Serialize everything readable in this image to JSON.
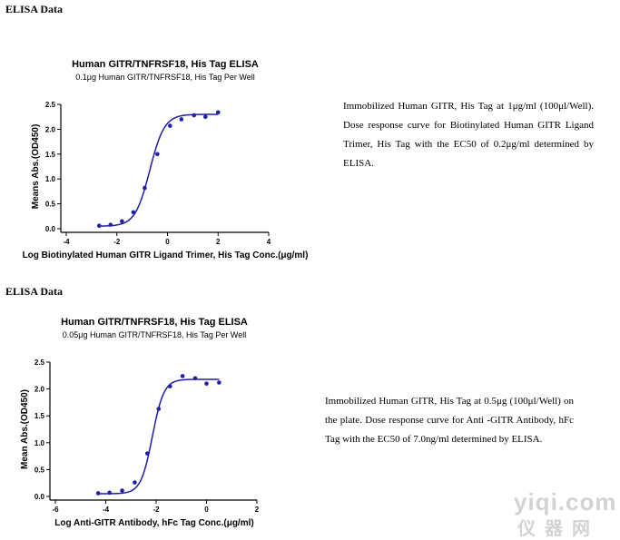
{
  "sections": [
    {
      "heading": "ELISA Data",
      "description": "Immobilized Human GITR, His Tag at 1μg/ml (100μl/Well). Dose response curve for Biotinylated Human GITR Ligand Trimer, His Tag with the EC50 of 0.2μg/ml determined by ELISA."
    },
    {
      "heading": "ELISA Data",
      "description": "Immobilized Human GITR, His Tag at 0.5μg (100μl/Well) on the plate. Dose response curve for Anti -GITR Antibody, hFc Tag with the EC50 of 7.0ng/ml determined by ELISA."
    }
  ],
  "watermark": {
    "line1": "yiqi.com",
    "line2": "仪器网"
  },
  "chart_data": [
    {
      "type": "scatter",
      "title": "Human GITR/TNFRSF18, His Tag ELISA",
      "subtitle": "0.1μg Human GITR/TNFRSF18, His Tag Per Well",
      "xlabel": "Log Biotinylated Human GITR Ligand Trimer, His Tag Conc.(μg/ml)",
      "ylabel": "Means Abs.(OD450)",
      "xlim": [
        -4,
        4
      ],
      "ylim": [
        0,
        2.5
      ],
      "xticks": [
        "-4",
        "-2",
        "0",
        "2",
        "4"
      ],
      "yticks": [
        "0.0",
        "0.5",
        "1.0",
        "1.5",
        "2.0",
        "2.5"
      ],
      "points": [
        {
          "x": -2.7,
          "y": 0.06
        },
        {
          "x": -2.25,
          "y": 0.08
        },
        {
          "x": -1.8,
          "y": 0.15
        },
        {
          "x": -1.35,
          "y": 0.33
        },
        {
          "x": -0.9,
          "y": 0.82
        },
        {
          "x": -0.4,
          "y": 1.5
        },
        {
          "x": 0.1,
          "y": 2.07
        },
        {
          "x": 0.55,
          "y": 2.2
        },
        {
          "x": 1.05,
          "y": 2.28
        },
        {
          "x": 1.5,
          "y": 2.25
        },
        {
          "x": 2.0,
          "y": 2.34
        }
      ],
      "curve": {
        "bottom": 0.05,
        "top": 2.3,
        "logEC50": -0.7,
        "hill": 1.5
      },
      "grid": false,
      "color": "#1f1fa8"
    },
    {
      "type": "scatter",
      "title": "Human GITR/TNFRSF18, His Tag ELISA",
      "subtitle": "0.05μg Human GITR/TNFRSF18, His Tag Per Well",
      "xlabel": "Log Anti-GITR Antibody, hFc Tag Conc.(μg/ml)",
      "ylabel": "Mean Abs.(OD450)",
      "xlim": [
        -6,
        2
      ],
      "ylim": [
        0,
        2.5
      ],
      "xticks": [
        "-6",
        "-4",
        "-2",
        "0",
        "2"
      ],
      "yticks": [
        "0.0",
        "0.5",
        "1.0",
        "1.5",
        "2.0",
        "2.5"
      ],
      "points": [
        {
          "x": -4.3,
          "y": 0.06
        },
        {
          "x": -3.85,
          "y": 0.07
        },
        {
          "x": -3.35,
          "y": 0.11
        },
        {
          "x": -2.85,
          "y": 0.26
        },
        {
          "x": -2.35,
          "y": 0.8
        },
        {
          "x": -1.9,
          "y": 1.63
        },
        {
          "x": -1.45,
          "y": 2.05
        },
        {
          "x": -0.95,
          "y": 2.24
        },
        {
          "x": -0.45,
          "y": 2.2
        },
        {
          "x": 0.0,
          "y": 2.1
        },
        {
          "x": 0.5,
          "y": 2.12
        }
      ],
      "curve": {
        "bottom": 0.05,
        "top": 2.18,
        "logEC50": -2.15,
        "hill": 1.9
      },
      "grid": false,
      "color": "#1f1fa8"
    }
  ]
}
